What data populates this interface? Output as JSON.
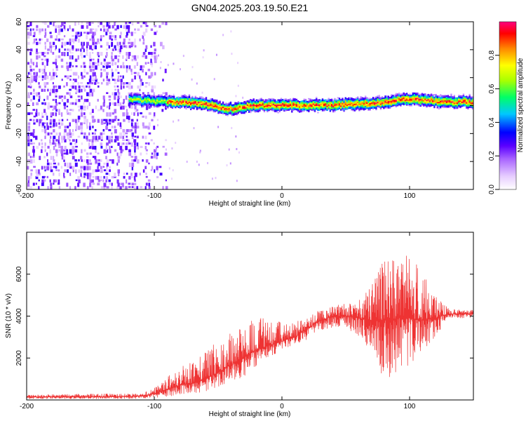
{
  "figure": {
    "title": "GN04.2025.203.19.50.E21"
  },
  "chart_data": [
    {
      "type": "heatmap",
      "title": "",
      "xlabel": "Height of straight line (km)",
      "ylabel": "Frequency (Hz)",
      "xlim": [
        -200,
        150
      ],
      "ylim": [
        -60,
        60
      ],
      "xticks": [
        -200,
        -100,
        0,
        100
      ],
      "yticks": [
        60,
        40,
        20,
        0,
        -20,
        -40,
        -60
      ],
      "grid": false,
      "colorbar": {
        "label": "Normalized spectral amplitude",
        "range": [
          0.0,
          1.0
        ],
        "ticks": [
          0.0,
          0.2,
          0.4,
          0.6,
          0.8
        ],
        "colormap": [
          "#ffffff",
          "#e6ccff",
          "#aa66ff",
          "#6a00ff",
          "#0000ff",
          "#00c8ff",
          "#00ff66",
          "#aaff00",
          "#ffff00",
          "#ff8800",
          "#ff0000",
          "#ff0080"
        ]
      },
      "regions": [
        {
          "name": "broadband noise",
          "x": [
            -200,
            -100
          ],
          "y": [
            -60,
            60
          ],
          "amplitude": 0.2
        },
        {
          "name": "narrowband signal",
          "x": [
            -120,
            150
          ],
          "center_y": [
            [
              -120,
              4
            ],
            [
              -100,
              3
            ],
            [
              -80,
              2
            ],
            [
              -60,
              1
            ],
            [
              -45,
              -3
            ],
            [
              -35,
              -2
            ],
            [
              -20,
              0
            ],
            [
              0,
              0
            ],
            [
              20,
              0
            ],
            [
              40,
              0
            ],
            [
              60,
              1
            ],
            [
              80,
              2
            ],
            [
              90,
              4
            ],
            [
              100,
              4
            ],
            [
              120,
              3
            ],
            [
              150,
              2
            ]
          ],
          "halfwidth_hz": 3,
          "peak_amplitude": 0.95
        }
      ]
    },
    {
      "type": "line",
      "title": "",
      "xlabel": "Height of straight line (km)",
      "ylabel": "SNR (10 * v/v)",
      "xlim": [
        -200,
        150
      ],
      "ylim": [
        0,
        8000
      ],
      "xticks": [
        -200,
        -100,
        0,
        100
      ],
      "yticks": [
        2000,
        4000,
        6000
      ],
      "grid": false,
      "series": [
        {
          "color": "#ee3333",
          "envelope": {
            "x": [
              -200,
              -150,
              -110,
              -100,
              -90,
              -80,
              -70,
              -60,
              -50,
              -40,
              -30,
              -20,
              -10,
              0,
              10,
              20,
              30,
              40,
              50,
              60,
              70,
              80,
              90,
              100,
              110,
              120,
              130,
              140,
              150
            ],
            "mean": [
              150,
              150,
              180,
              300,
              500,
              700,
              800,
              1000,
              1300,
              1700,
              2000,
              2400,
              2600,
              2800,
              3000,
              3400,
              3800,
              4000,
              4000,
              3900,
              3800,
              3800,
              3900,
              3900,
              3800,
              3900,
              4100,
              4100,
              4100
            ],
            "low": [
              50,
              50,
              60,
              80,
              150,
              250,
              300,
              400,
              600,
              800,
              1100,
              1600,
              2000,
              2400,
              2600,
              2900,
              3300,
              3400,
              3400,
              3000,
              2300,
              1000,
              1200,
              1500,
              2200,
              3000,
              3900,
              3900,
              3900
            ],
            "high": [
              250,
              300,
              300,
              600,
              1100,
              1600,
              1800,
              2300,
              3000,
              3200,
              3500,
              4000,
              3900,
              3700,
              3700,
              4000,
              4300,
              4500,
              4600,
              4800,
              5500,
              6900,
              6600,
              7800,
              6200,
              5000,
              4400,
              4300,
              4300
            ]
          }
        }
      ]
    }
  ]
}
